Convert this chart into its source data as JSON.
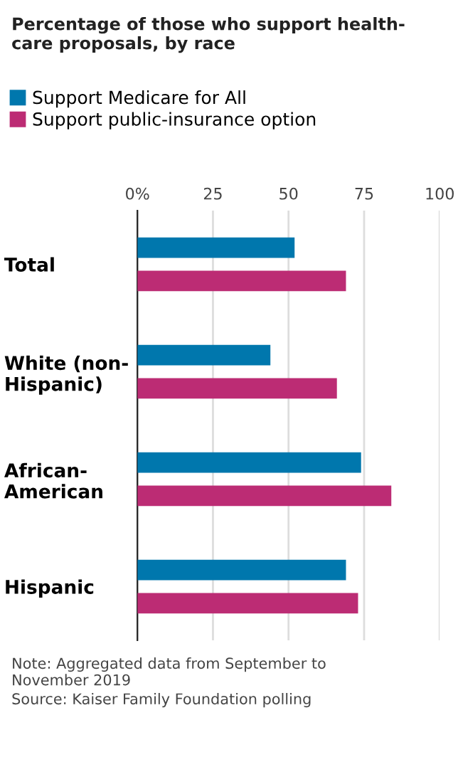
{
  "chart_data": {
    "type": "bar",
    "orientation": "horizontal",
    "title": "Percentage of those who support health-\ncare proposals, by race",
    "categories": [
      "Total",
      "White (non-\nHispanic)",
      "African-\nAmerican",
      "Hispanic"
    ],
    "series": [
      {
        "name": "Support Medicare for All",
        "color": "#0077ad",
        "values": [
          52,
          44,
          74,
          69
        ]
      },
      {
        "name": "Support public-insurance option",
        "color": "#bc2c74",
        "values": [
          69,
          66,
          84,
          73
        ]
      }
    ],
    "xlim": [
      0,
      100
    ],
    "xticks": [
      {
        "value": 0,
        "label": "0%"
      },
      25,
      50,
      75,
      100
    ],
    "grid": "x",
    "legend": "top left",
    "annotations": [
      "Note: Aggregated data from September to\nNovember 2019",
      "Source: Kaiser Family Foundation polling"
    ]
  }
}
